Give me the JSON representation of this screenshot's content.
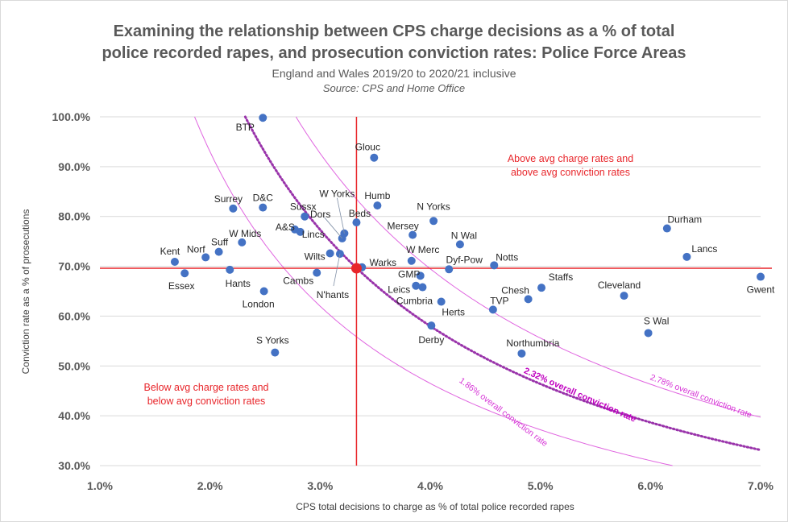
{
  "chart_data": {
    "type": "scatter",
    "title": "Examining the relationship between CPS charge decisions as a % of total police recorded rapes, and prosecution conviction rates: Police Force Areas",
    "title_lines": [
      "Examining the relationship between CPS charge decisions as a % of total",
      "police recorded rapes, and prosecution conviction rates: Police Force Areas"
    ],
    "subtitle": "England and Wales 2019/20 to 2020/21 inclusive",
    "source": "Source: CPS and Home Office",
    "xlabel": "CPS total decisions to charge as % of total police recorded rapes",
    "ylabel": "Conviction rate as a % of prosecutions",
    "xlim": [
      1.0,
      7.0
    ],
    "ylim": [
      30.0,
      100.0
    ],
    "x_ticks": [
      "1.0%",
      "2.0%",
      "3.0%",
      "4.0%",
      "5.0%",
      "6.0%",
      "7.0%"
    ],
    "y_ticks": [
      "30.0%",
      "40.0%",
      "50.0%",
      "60.0%",
      "70.0%",
      "80.0%",
      "90.0%",
      "100.0%"
    ],
    "grid": "horizontal",
    "point_color": "#4472c4",
    "average_color": "#e8262b",
    "average": {
      "x": 3.33,
      "y": 69.6
    },
    "points": [
      {
        "name": "BTP",
        "x": 2.48,
        "y": 99.8
      },
      {
        "name": "Glouc",
        "x": 3.49,
        "y": 91.8
      },
      {
        "name": "Surrey",
        "x": 2.21,
        "y": 81.6
      },
      {
        "name": "D&C",
        "x": 2.48,
        "y": 81.8
      },
      {
        "name": "Sussx",
        "x": 2.86,
        "y": 80.0
      },
      {
        "name": "Humb",
        "x": 3.52,
        "y": 82.2
      },
      {
        "name": "Beds",
        "x": 3.33,
        "y": 78.8
      },
      {
        "name": "N Yorks",
        "x": 4.03,
        "y": 79.1
      },
      {
        "name": "W Yorks",
        "x": 3.22,
        "y": 76.6
      },
      {
        "name": "Dors",
        "x": 3.2,
        "y": 75.6
      },
      {
        "name": "A&S",
        "x": 2.77,
        "y": 77.4
      },
      {
        "name": "Lincs",
        "x": 2.82,
        "y": 76.9
      },
      {
        "name": "Mersey",
        "x": 3.84,
        "y": 76.3
      },
      {
        "name": "N Wal",
        "x": 4.27,
        "y": 74.4
      },
      {
        "name": "Durham",
        "x": 6.15,
        "y": 77.6
      },
      {
        "name": "Lancs",
        "x": 6.33,
        "y": 71.9
      },
      {
        "name": "W Mids",
        "x": 2.29,
        "y": 74.8
      },
      {
        "name": "Suff",
        "x": 2.08,
        "y": 72.9
      },
      {
        "name": "Norf",
        "x": 1.96,
        "y": 71.8
      },
      {
        "name": "Kent",
        "x": 1.68,
        "y": 70.9
      },
      {
        "name": "Essex",
        "x": 1.77,
        "y": 68.6
      },
      {
        "name": "Hants",
        "x": 2.18,
        "y": 69.3
      },
      {
        "name": "Wilts",
        "x": 3.09,
        "y": 72.6
      },
      {
        "name": "N'hants",
        "x": 3.18,
        "y": 72.5
      },
      {
        "name": "Warks",
        "x": 3.38,
        "y": 69.8
      },
      {
        "name": "W Merc",
        "x": 3.83,
        "y": 71.1
      },
      {
        "name": "Dyf-Pow",
        "x": 4.17,
        "y": 69.4
      },
      {
        "name": "Notts",
        "x": 4.58,
        "y": 70.2
      },
      {
        "name": "Gwent",
        "x": 7.0,
        "y": 67.9
      },
      {
        "name": "Cambs",
        "x": 2.97,
        "y": 68.7
      },
      {
        "name": "London",
        "x": 2.49,
        "y": 65.0
      },
      {
        "name": "GMP",
        "x": 3.91,
        "y": 68.1
      },
      {
        "name": "Leics",
        "x": 3.87,
        "y": 66.1
      },
      {
        "name": "Cumbria",
        "x": 3.93,
        "y": 65.8
      },
      {
        "name": "Herts",
        "x": 4.1,
        "y": 62.9
      },
      {
        "name": "TVP",
        "x": 4.57,
        "y": 61.3
      },
      {
        "name": "Chesh",
        "x": 4.89,
        "y": 63.4
      },
      {
        "name": "Staffs",
        "x": 5.01,
        "y": 65.7
      },
      {
        "name": "Cleveland",
        "x": 5.76,
        "y": 64.1
      },
      {
        "name": "S Wal",
        "x": 5.98,
        "y": 56.6
      },
      {
        "name": "Derby",
        "x": 4.01,
        "y": 58.1
      },
      {
        "name": "Northumbria",
        "x": 4.83,
        "y": 52.5
      },
      {
        "name": "S Yorks",
        "x": 2.59,
        "y": 52.7
      }
    ],
    "curves": [
      {
        "label": "1.86% overall conviction rate",
        "k": 1.86,
        "color": "#e066e0",
        "style": "solid"
      },
      {
        "label": "2.32% overall conviction rate",
        "k": 2.32,
        "color": "#9933aa",
        "style": "dotted"
      },
      {
        "label": "2.78% overall conviction rate",
        "k": 2.78,
        "color": "#e066e0",
        "style": "solid"
      }
    ],
    "annotations": {
      "top_right": [
        "Above avg charge rates and",
        "above avg conviction rates"
      ],
      "bottom_left": [
        "Below avg charge rates and",
        "below avg conviction rates"
      ]
    }
  }
}
